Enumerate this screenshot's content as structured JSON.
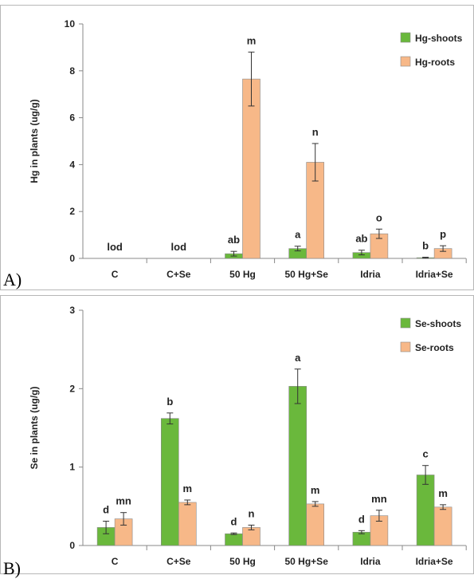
{
  "chart_data": [
    {
      "type": "bar",
      "panel_label": "A)",
      "ylabel": "Hg in plants (ug/g)",
      "xlabel": "",
      "ylim": [
        0,
        10
      ],
      "yticks": [
        0,
        2,
        4,
        6,
        8,
        10
      ],
      "legend_position": "top-right",
      "categories": [
        "C",
        "C+Se",
        "50 Hg",
        "50 Hg+Se",
        "Idria",
        "Idria+Se"
      ],
      "series": [
        {
          "name": "Hg-shoots",
          "color": "#6ab83c",
          "values": [
            null,
            null,
            0.2,
            0.42,
            0.25,
            0.03
          ],
          "errors": [
            null,
            null,
            0.1,
            0.1,
            0.1,
            0.02
          ],
          "letters": [
            "",
            "",
            "ab",
            "a",
            "ab",
            "b"
          ]
        },
        {
          "name": "Hg-roots",
          "color": "#f7b888",
          "values": [
            null,
            null,
            7.65,
            4.1,
            1.05,
            0.42
          ],
          "errors": [
            null,
            null,
            1.15,
            0.8,
            0.2,
            0.12
          ],
          "letters": [
            "",
            "",
            "m",
            "n",
            "o",
            "p"
          ]
        }
      ],
      "annotations": [
        {
          "category": "C",
          "text": "lod"
        },
        {
          "category": "C+Se",
          "text": "lod"
        }
      ]
    },
    {
      "type": "bar",
      "panel_label": "B)",
      "ylabel": "Se in plants (ug/g)",
      "xlabel": "",
      "ylim": [
        0,
        3
      ],
      "yticks": [
        0,
        1,
        2,
        3
      ],
      "legend_position": "top-right",
      "categories": [
        "C",
        "C+Se",
        "50 Hg",
        "50 Hg+Se",
        "Idria",
        "Idria+Se"
      ],
      "series": [
        {
          "name": "Se-shoots",
          "color": "#6ab83c",
          "values": [
            0.23,
            1.62,
            0.15,
            2.03,
            0.17,
            0.9
          ],
          "errors": [
            0.08,
            0.07,
            0.01,
            0.22,
            0.02,
            0.12
          ],
          "letters": [
            "d",
            "b",
            "d",
            "a",
            "d",
            "c"
          ]
        },
        {
          "name": "Se-roots",
          "color": "#f7b888",
          "values": [
            0.34,
            0.55,
            0.23,
            0.53,
            0.38,
            0.49
          ],
          "errors": [
            0.08,
            0.03,
            0.03,
            0.03,
            0.07,
            0.03
          ],
          "letters": [
            "mn",
            "m",
            "n",
            "m",
            "mn",
            "m"
          ]
        }
      ],
      "annotations": []
    }
  ]
}
